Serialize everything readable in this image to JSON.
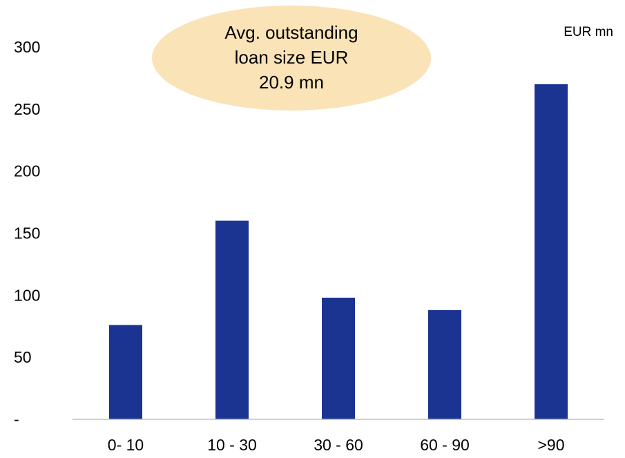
{
  "chart_data": {
    "type": "bar",
    "categories": [
      "0- 10",
      "10 - 30",
      "30 - 60",
      "60 - 90",
      ">90"
    ],
    "values": [
      76,
      160,
      98,
      88,
      270
    ],
    "ylim": [
      0,
      300
    ],
    "yticks": [
      0,
      50,
      100,
      150,
      200,
      250,
      300
    ],
    "ytick_labels": [
      "-",
      "50",
      "100",
      "150",
      "200",
      "250",
      "300"
    ],
    "unit_label": "EUR mn",
    "bar_color": "#1b3391",
    "axis_color": "#bfbfbf",
    "grid": false,
    "callout": {
      "lines": [
        "Avg. outstanding",
        "loan size EUR",
        "20.9 mn"
      ],
      "fill_color": "#fbe3b8"
    }
  }
}
